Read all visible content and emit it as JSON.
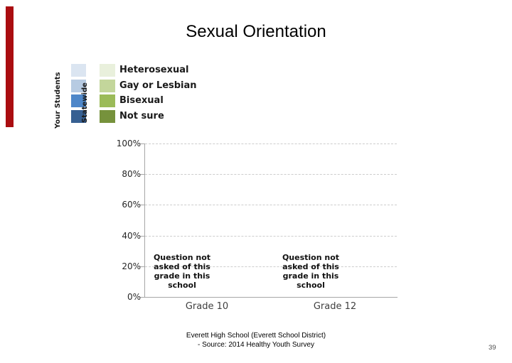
{
  "slide": {
    "title": "Sexual Orientation",
    "accent_bar_color": "#aa0d10",
    "page_number": "39",
    "footer": {
      "line1": "Everett High School (Everett School District)",
      "line2": "- Source: 2014 Healthy Youth Survey"
    }
  },
  "chart_data": {
    "type": "bar",
    "title": "Sexual Orientation",
    "categories": [
      "Grade 10",
      "Grade 12"
    ],
    "subcategories": [
      "Heterosexual",
      "Gay or Lesbian",
      "Bisexual",
      "Not sure"
    ],
    "series": [
      {
        "name": "Your Students",
        "colors": [
          "#dbe5f1",
          "#b7cbe2",
          "#4e87c9",
          "#376092"
        ],
        "values": []
      },
      {
        "name": "Statewide",
        "colors": [
          "#e9f0dc",
          "#c3d69b",
          "#9bbb59",
          "#76923c"
        ],
        "values": []
      }
    ],
    "y_ticks": [
      "100%",
      "80%",
      "60%",
      "40%",
      "20%",
      "0%"
    ],
    "ylim": [
      0,
      100
    ],
    "grid": "horizontal dashed",
    "legend_position": "top-left",
    "annotations": [
      {
        "category": "Grade 10",
        "lines": [
          "Question not",
          "asked of this",
          "grade in this",
          "school"
        ]
      },
      {
        "category": "Grade 12",
        "lines": [
          "Question not",
          "asked of this",
          "grade in this",
          "school"
        ]
      }
    ]
  }
}
